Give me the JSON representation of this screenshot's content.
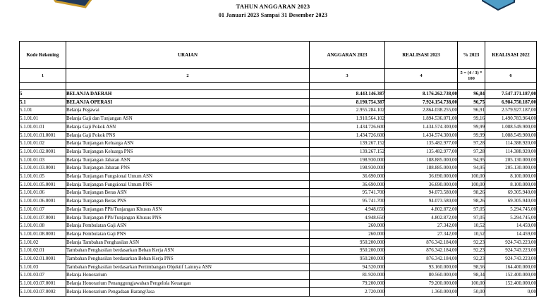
{
  "page": {
    "title_line1": "TAHUN ANGGARAN 2023",
    "title_line2": "01 Januari 2023 Sampai 31 Desember 2023"
  },
  "emblems": {
    "left_fill": "#22395a",
    "left_border": "#c99a2e",
    "right_fill": "#4f9dc7",
    "right_border": "#16324f"
  },
  "table": {
    "headers": [
      "Kode Rekening",
      "URAIAN",
      "ANGGARAN 2023",
      "REALISASI 2023",
      "% 2023",
      "REALISASI 2022"
    ],
    "header_numbers": [
      "1",
      "2",
      "3",
      "4",
      "5 = (4 / 3) * 100",
      "6"
    ],
    "rows": [
      {
        "kode": "5",
        "uraian": "BELANJA DAERAH",
        "anggaran": "8.443.146.387",
        "realisasi_2023": "8.176.262.738,00",
        "pct": "96,84",
        "realisasi_2022": "7.547.171.187,00",
        "bold": true
      },
      {
        "kode": "5.1",
        "uraian": "BELANJA OPERASI",
        "anggaran": "8.190.754.387",
        "realisasi_2023": "7.924.154.738,00",
        "pct": "96,75",
        "realisasi_2022": "6.984.750.187,00",
        "bold": true
      },
      {
        "kode": "5.1.01",
        "uraian": "Belanja Pegawai",
        "anggaran": "2.955.284.102",
        "realisasi_2023": "2.864.038.255,00",
        "pct": "96,91",
        "realisasi_2022": "2.579.927.187,00",
        "bold": false
      },
      {
        "kode": "5.1.01.01",
        "uraian": "Belanja Gaji dan Tunjangan ASN",
        "anggaran": "1.910.564.102",
        "realisasi_2023": "1.894.536.071,00",
        "pct": "99,16",
        "realisasi_2022": "1.490.783.964,00",
        "bold": false
      },
      {
        "kode": "5.1.01.01.01",
        "uraian": "Belanja Gaji Pokok ASN",
        "anggaran": "1.434.726.600",
        "realisasi_2023": "1.434.574.300,00",
        "pct": "99,99",
        "realisasi_2022": "1.088.549.900,00",
        "bold": false
      },
      {
        "kode": "5.1.01.01.01.0001",
        "uraian": "Belanja Gaji Pokok PNS",
        "anggaran": "1.434.726.600",
        "realisasi_2023": "1.434.574.300,00",
        "pct": "99,99",
        "realisasi_2022": "1.088.549.900,00",
        "bold": false
      },
      {
        "kode": "5.1.01.01.02",
        "uraian": "Belanja Tunjangan Keluarga ASN",
        "anggaran": "139.267.152",
        "realisasi_2023": "135.482.977,00",
        "pct": "97,28",
        "realisasi_2022": "114.388.920,00",
        "bold": false
      },
      {
        "kode": "5.1.01.01.02.0001",
        "uraian": "Belanja Tunjangan Keluarga PNS",
        "anggaran": "139.267.152",
        "realisasi_2023": "135.482.977,00",
        "pct": "97,28",
        "realisasi_2022": "114.388.920,00",
        "bold": false
      },
      {
        "kode": "5.1.01.01.03",
        "uraian": "Belanja Tunjangan Jabatan ASN",
        "anggaran": "198.930.000",
        "realisasi_2023": "188.885.000,00",
        "pct": "94,95",
        "realisasi_2022": "205.130.000,00",
        "bold": false
      },
      {
        "kode": "5.1.01.01.03.0001",
        "uraian": "Belanja Tunjangan Jabatan PNS",
        "anggaran": "198.930.000",
        "realisasi_2023": "188.885.000,00",
        "pct": "94,95",
        "realisasi_2022": "205.130.000,00",
        "bold": false
      },
      {
        "kode": "5.1.01.01.05",
        "uraian": "Belanja Tunjangan Fungsional Umum ASN",
        "anggaran": "36.690.000",
        "realisasi_2023": "36.690.000,00",
        "pct": "100,00",
        "realisasi_2022": "8.100.000,00",
        "bold": false
      },
      {
        "kode": "5.1.01.01.05.0001",
        "uraian": "Belanja Tunjangan Fungsional Umum PNS",
        "anggaran": "36.690.000",
        "realisasi_2023": "36.690.000,00",
        "pct": "100,00",
        "realisasi_2022": "8.100.000,00",
        "bold": false
      },
      {
        "kode": "5.1.01.01.06",
        "uraian": "Belanja Tunjangan Beras ASN",
        "anggaran": "95.741.700",
        "realisasi_2023": "94.073.580,00",
        "pct": "98,26",
        "realisasi_2022": "69.305.940,00",
        "bold": false
      },
      {
        "kode": "5.1.01.01.06.0001",
        "uraian": "Belanja Tunjangan Beras PNS",
        "anggaran": "95.741.700",
        "realisasi_2023": "94.073.580,00",
        "pct": "98,26",
        "realisasi_2022": "69.305.940,00",
        "bold": false
      },
      {
        "kode": "5.1.01.01.07",
        "uraian": "Belanja Tunjangan PPh/Tunjangan Khusus ASN",
        "anggaran": "4.948.650",
        "realisasi_2023": "4.802.872,00",
        "pct": "97,05",
        "realisasi_2022": "5.294.745,00",
        "bold": false
      },
      {
        "kode": "5.1.01.01.07.0001",
        "uraian": "Belanja Tunjangan PPh/Tunjangan Khusus PNS",
        "anggaran": "4.948.650",
        "realisasi_2023": "4.802.872,00",
        "pct": "97,05",
        "realisasi_2022": "5.294.745,00",
        "bold": false
      },
      {
        "kode": "5.1.01.01.08",
        "uraian": "Belanja Pembulatan Gaji ASN",
        "anggaran": "260.000",
        "realisasi_2023": "27.342,00",
        "pct": "10,52",
        "realisasi_2022": "14.459,00",
        "bold": false
      },
      {
        "kode": "5.1.01.01.08.0001",
        "uraian": "Belanja Pembulatan Gaji PNS",
        "anggaran": "260.000",
        "realisasi_2023": "27.342,00",
        "pct": "10,52",
        "realisasi_2022": "14.459,00",
        "bold": false
      },
      {
        "kode": "5.1.01.02",
        "uraian": "Belanja Tambahan Penghasilan ASN",
        "anggaran": "950.200.000",
        "realisasi_2023": "876.342.184,00",
        "pct": "92,23",
        "realisasi_2022": "924.743.223,00",
        "bold": false
      },
      {
        "kode": "5.1.01.02.01",
        "uraian": "Tambahan Penghasilan berdasarkan Beban Kerja ASN",
        "anggaran": "950.200.000",
        "realisasi_2023": "876.342.184,00",
        "pct": "92,23",
        "realisasi_2022": "924.743.223,00",
        "bold": false
      },
      {
        "kode": "5.1.01.02.01.0001",
        "uraian": "Tambahan Penghasilan berdasarkan Beban Kerja PNS",
        "anggaran": "950.200.000",
        "realisasi_2023": "876.342.184,00",
        "pct": "92,23",
        "realisasi_2022": "924.743.223,00",
        "bold": false
      },
      {
        "kode": "5.1.01.03",
        "uraian": "Tambahan Penghasilan berdasarkan Pertimbangan Objektif Lainnya ASN",
        "anggaran": "94.520.000",
        "realisasi_2023": "93.160.000,00",
        "pct": "98,56",
        "realisasi_2022": "164.400.000,00",
        "bold": false
      },
      {
        "kode": "5.1.01.03.07",
        "uraian": "Belanja Honorarium",
        "anggaran": "81.920.000",
        "realisasi_2023": "80.560.000,00",
        "pct": "98,34",
        "realisasi_2022": "152.400.000,00",
        "bold": false
      },
      {
        "kode": "5.1.01.03.07.0001",
        "uraian": "Belanja Honorarium Penanggungjawaban Pengelola Keuangan",
        "anggaran": "79.200.000",
        "realisasi_2023": "79.200.000,00",
        "pct": "100,00",
        "realisasi_2022": "152.400.000,00",
        "bold": false
      },
      {
        "kode": "5.1.01.03.07.0002",
        "uraian": "Belanja Honorarium Pengadaan Barang/Jasa",
        "anggaran": "2.720.000",
        "realisasi_2023": "1.360.000,00",
        "pct": "50,00",
        "realisasi_2022": "0,00",
        "bold": false
      }
    ]
  }
}
